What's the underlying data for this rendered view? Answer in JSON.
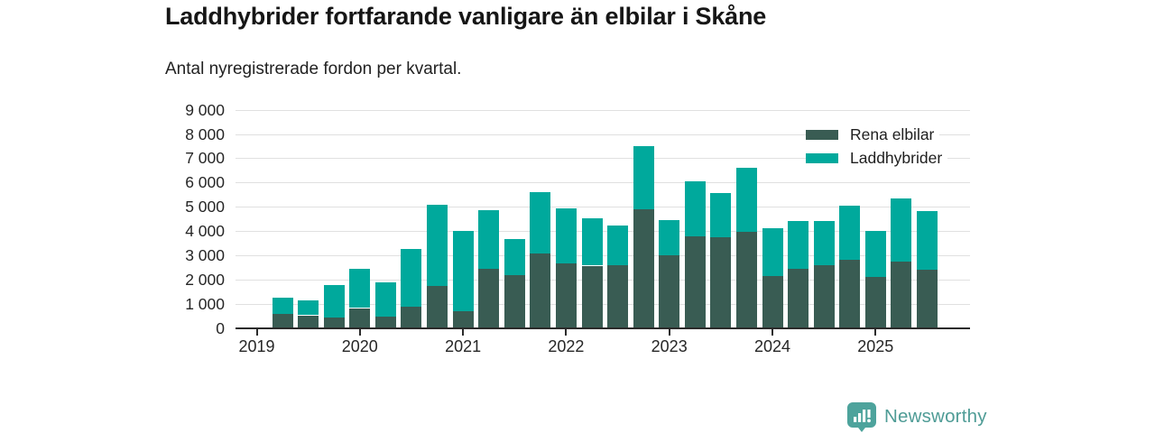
{
  "title": "Laddhybrider fortfarande vanligare än elbilar i Skåne",
  "subtitle": "Antal nyregistrerade fordon per kvartal.",
  "colors": {
    "rena_elbilar": "#395c53",
    "laddhybrider": "#00a99c",
    "axis": "#2b2b2b",
    "gridline": "#e0e0e0",
    "logo": "#4f9c96"
  },
  "y_axis": {
    "tick_labels": [
      "0",
      "1 000",
      "2 000",
      "3 000",
      "4 000",
      "5 000",
      "6 000",
      "7 000",
      "8 000",
      "9 000"
    ],
    "tick_values": [
      0,
      1000,
      2000,
      3000,
      4000,
      5000,
      6000,
      7000,
      8000,
      9000
    ]
  },
  "x_axis": {
    "year_labels": [
      "2019",
      "2020",
      "2021",
      "2022",
      "2023",
      "2024",
      "2025"
    ]
  },
  "legend": {
    "items": [
      "Rena elbilar",
      "Laddhybrider"
    ],
    "position": "top-right"
  },
  "logo": {
    "text": "Newsworthy",
    "icon": "bar-chart-speech-bubble-icon"
  },
  "chart_data": {
    "type": "bar",
    "stacked": true,
    "title": "Laddhybrider fortfarande vanligare än elbilar i Skåne",
    "subtitle": "Antal nyregistrerade fordon per kvartal.",
    "xlabel": "",
    "ylabel": "Antal nyregistrerade fordon per kvartal",
    "ylim": [
      0,
      9000
    ],
    "grid": true,
    "legend_position": "top-right",
    "start_offset_quarters": 1,
    "categories": [
      "2019 Q2",
      "2019 Q3",
      "2019 Q4",
      "2020 Q1",
      "2020 Q2",
      "2020 Q3",
      "2020 Q4",
      "2021 Q1",
      "2021 Q2",
      "2021 Q3",
      "2021 Q4",
      "2022 Q1",
      "2022 Q2",
      "2022 Q3",
      "2022 Q4",
      "2023 Q1",
      "2023 Q2",
      "2023 Q3",
      "2023 Q4",
      "2024 Q1",
      "2024 Q2",
      "2024 Q3",
      "2024 Q4",
      "2025 Q1",
      "2025 Q2",
      "2025 Q3"
    ],
    "series": [
      {
        "name": "Rena elbilar",
        "color": "#395c53",
        "values": [
          590,
          520,
          420,
          820,
          470,
          870,
          1720,
          690,
          2430,
          2180,
          3080,
          2680,
          2570,
          2600,
          4900,
          3000,
          3770,
          3740,
          3950,
          2140,
          2430,
          2590,
          2820,
          2100,
          2750,
          2410
        ]
      },
      {
        "name": "Laddhybrider",
        "color": "#00a99c",
        "values": [
          660,
          600,
          1350,
          1630,
          1420,
          2400,
          3360,
          3330,
          2440,
          1480,
          2540,
          2250,
          1960,
          1620,
          2600,
          1460,
          2290,
          1810,
          2650,
          1960,
          1970,
          1820,
          2210,
          1890,
          2590,
          2420
        ]
      }
    ]
  }
}
